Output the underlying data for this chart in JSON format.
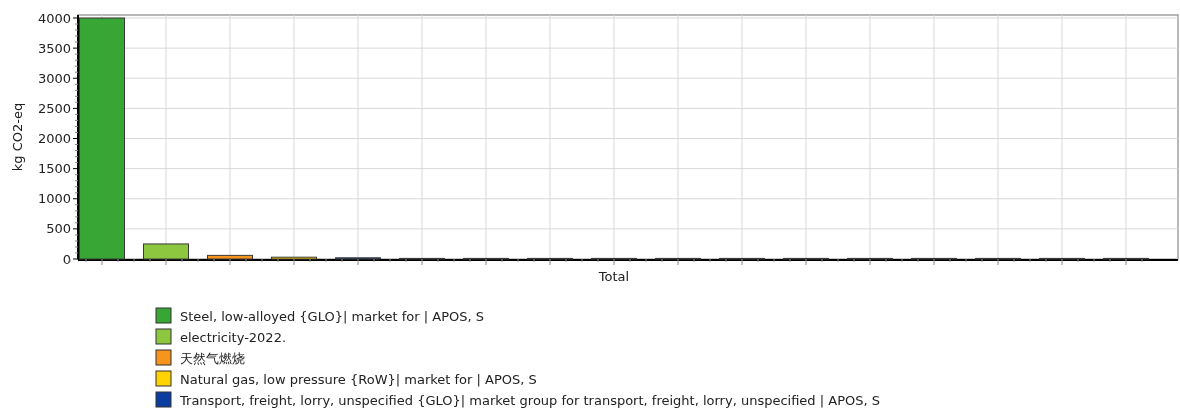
{
  "chart_data": {
    "type": "bar",
    "xlabel": "Total",
    "ylabel": "kg CO2-eq",
    "categories": [
      null
    ],
    "series": [
      {
        "name": "Steel, low-alloyed {GLO}| market for | APOS, S",
        "color": "#38a635",
        "values": [
          4000
        ]
      },
      {
        "name": "electricity-2022.",
        "color": "#8dc63f",
        "values": [
          250
        ]
      },
      {
        "name": "天然气燃烧",
        "color": "#f7941d",
        "values": [
          60
        ]
      },
      {
        "name": "Natural gas, low pressure {RoW}| market for | APOS, S",
        "color": "#ffd200",
        "values": [
          30
        ]
      },
      {
        "name": "Transport, freight, lorry, unspecified {GLO}| market group for transport, freight, lorry, unspecified | APOS, S",
        "color": "#0b3da0",
        "values": [
          20
        ]
      },
      {
        "color": "#29b6e8",
        "values": [
          10
        ]
      },
      {
        "color": "#a0522d",
        "values": [
          10
        ]
      },
      {
        "color": "#e8302a",
        "values": [
          10
        ]
      },
      {
        "color": "#6b3fa0",
        "values": [
          10
        ]
      },
      {
        "color": "#808080",
        "values": [
          10
        ]
      },
      {
        "color": "#d990c8",
        "values": [
          10
        ]
      },
      {
        "color": "#4d5a3a",
        "values": [
          10
        ]
      },
      {
        "color": "#9a9a9a",
        "values": [
          10
        ]
      },
      {
        "color": "#303030",
        "values": [
          10
        ]
      },
      {
        "color": "#e0218a",
        "values": [
          10
        ]
      },
      {
        "color": "#1aa39a",
        "values": [
          10
        ]
      },
      {
        "color": "#b060b0",
        "values": [
          10
        ]
      }
    ],
    "ylim": [
      0,
      4050
    ],
    "yticks": [
      0,
      500,
      1000,
      1500,
      2000,
      2500,
      3000,
      3500,
      4000
    ],
    "grid": true,
    "legend": "bottom"
  }
}
